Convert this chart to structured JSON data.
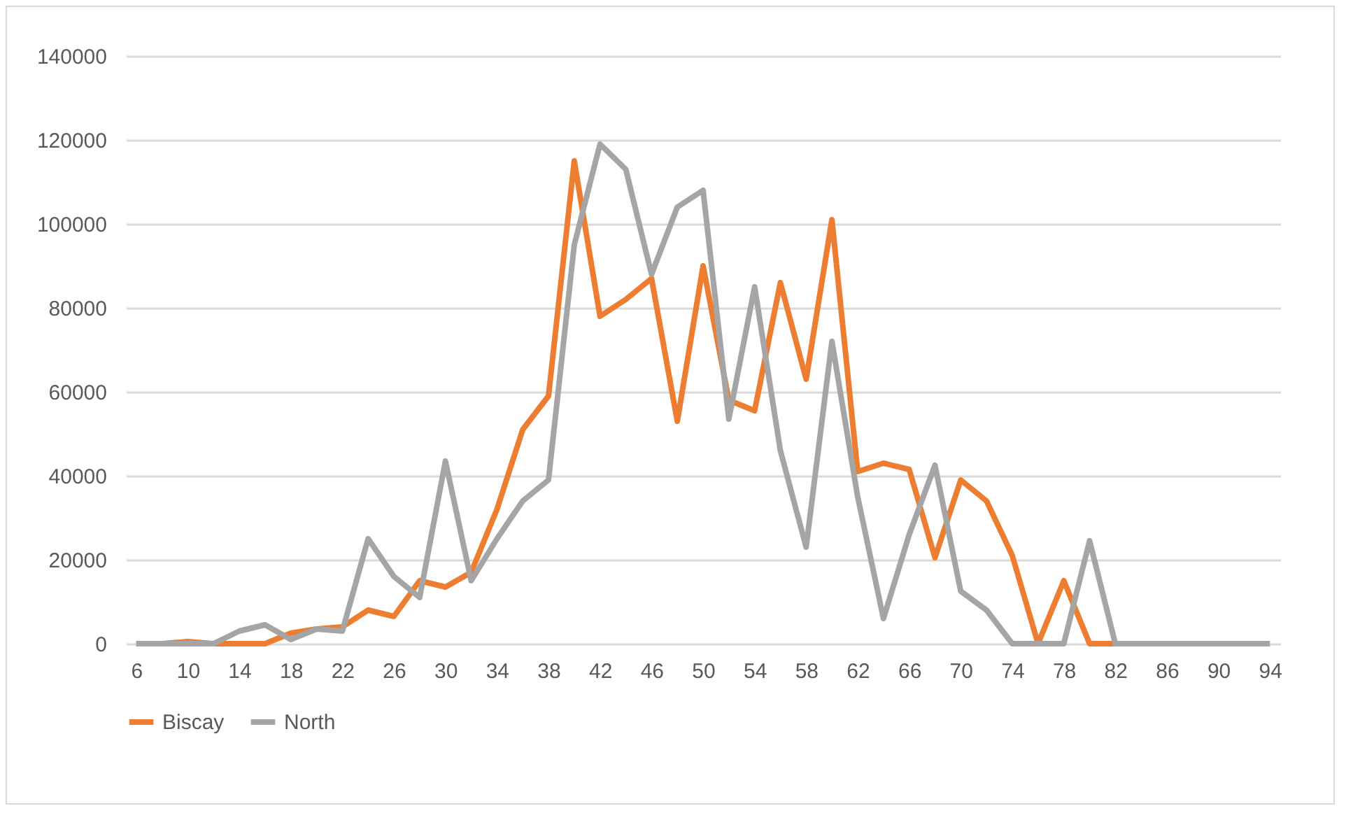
{
  "chart_data": {
    "type": "line",
    "categories": [
      "6",
      null,
      "10",
      null,
      "14",
      null,
      "18",
      null,
      "22",
      null,
      "26",
      null,
      "30",
      null,
      "34",
      null,
      "38",
      null,
      "42",
      null,
      "46",
      null,
      "50",
      null,
      "54",
      null,
      "58",
      null,
      "62",
      null,
      "66",
      null,
      "70",
      null,
      "74",
      null,
      "78",
      null,
      "82",
      null,
      "86",
      null,
      "90",
      null,
      "94"
    ],
    "series": [
      {
        "name": "Biscay",
        "color": "#ed7d31",
        "values": [
          0,
          0,
          500,
          0,
          0,
          0,
          2500,
          3500,
          4000,
          8000,
          6500,
          15000,
          13500,
          17000,
          32000,
          51000,
          59000,
          115000,
          78000,
          82000,
          87000,
          53000,
          90000,
          58000,
          55500,
          86000,
          63000,
          101000,
          41000,
          43000,
          41500,
          20500,
          39000,
          34000,
          21000,
          0,
          15000,
          0,
          0,
          null,
          null,
          null,
          null,
          null,
          null
        ]
      },
      {
        "name": "North",
        "color": "#a5a5a5",
        "values": [
          0,
          0,
          0,
          0,
          3000,
          4500,
          1000,
          3500,
          3000,
          25000,
          16000,
          11000,
          43500,
          15000,
          25000,
          34000,
          39000,
          95000,
          119000,
          113000,
          88000,
          104000,
          108000,
          53500,
          85000,
          46000,
          23000,
          72000,
          35000,
          6000,
          26000,
          42500,
          12500,
          8000,
          0,
          0,
          0,
          24500,
          0,
          0,
          0,
          0,
          0,
          0,
          0
        ]
      }
    ],
    "ylim": [
      0,
      140000
    ],
    "yticks": [
      0,
      20000,
      40000,
      60000,
      80000,
      100000,
      120000,
      140000
    ],
    "grid": "y",
    "legend": "bottom"
  }
}
